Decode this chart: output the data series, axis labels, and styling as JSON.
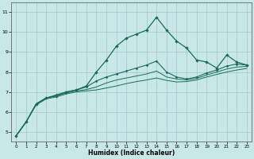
{
  "title": "",
  "xlabel": "Humidex (Indice chaleur)",
  "bg_color": "#c8e8e8",
  "grid_color": "#a0c8c8",
  "line_color": "#1a6b5a",
  "xlim": [
    -0.5,
    23.5
  ],
  "ylim": [
    4.5,
    11.5
  ],
  "xticks": [
    0,
    1,
    2,
    3,
    4,
    5,
    6,
    7,
    8,
    9,
    10,
    11,
    12,
    13,
    14,
    15,
    16,
    17,
    18,
    19,
    20,
    21,
    22,
    23
  ],
  "yticks": [
    5,
    6,
    7,
    8,
    9,
    10,
    11
  ],
  "line1_x": [
    0,
    1,
    2,
    3,
    4,
    5,
    6,
    7,
    8,
    9,
    10,
    11,
    12,
    13,
    14,
    15,
    16,
    17,
    18,
    19,
    20,
    21,
    22,
    23
  ],
  "line1_y": [
    4.8,
    5.5,
    6.4,
    6.7,
    6.8,
    7.0,
    7.1,
    7.3,
    8.0,
    8.6,
    9.3,
    9.7,
    9.9,
    10.1,
    10.75,
    10.1,
    9.55,
    9.2,
    8.6,
    8.5,
    8.2,
    8.85,
    8.5,
    8.35
  ],
  "line2_x": [
    0,
    1,
    2,
    3,
    4,
    5,
    6,
    7,
    8,
    9,
    10,
    11,
    12,
    13,
    14,
    15,
    16,
    17,
    18,
    19,
    20,
    21,
    22,
    23
  ],
  "line2_y": [
    4.8,
    5.5,
    6.4,
    6.7,
    6.85,
    7.0,
    7.1,
    7.25,
    7.55,
    7.75,
    7.9,
    8.05,
    8.2,
    8.35,
    8.55,
    8.0,
    7.75,
    7.65,
    7.75,
    7.95,
    8.1,
    8.3,
    8.4,
    8.35
  ],
  "line3_x": [
    0,
    1,
    2,
    3,
    4,
    5,
    6,
    7,
    8,
    9,
    10,
    11,
    12,
    13,
    14,
    15,
    16,
    17,
    18,
    19,
    20,
    21,
    22,
    23
  ],
  "line3_y": [
    4.8,
    5.5,
    6.4,
    6.7,
    6.8,
    6.95,
    7.05,
    7.12,
    7.25,
    7.45,
    7.6,
    7.7,
    7.8,
    7.9,
    8.05,
    7.75,
    7.65,
    7.6,
    7.68,
    7.85,
    8.0,
    8.15,
    8.25,
    8.28
  ],
  "line4_x": [
    0,
    1,
    2,
    3,
    4,
    5,
    6,
    7,
    8,
    9,
    10,
    11,
    12,
    13,
    14,
    15,
    16,
    17,
    18,
    19,
    20,
    21,
    22,
    23
  ],
  "line4_y": [
    4.8,
    5.5,
    6.35,
    6.65,
    6.75,
    6.9,
    7.0,
    7.05,
    7.1,
    7.2,
    7.3,
    7.42,
    7.52,
    7.6,
    7.7,
    7.58,
    7.5,
    7.52,
    7.6,
    7.75,
    7.88,
    8.0,
    8.1,
    8.18
  ]
}
